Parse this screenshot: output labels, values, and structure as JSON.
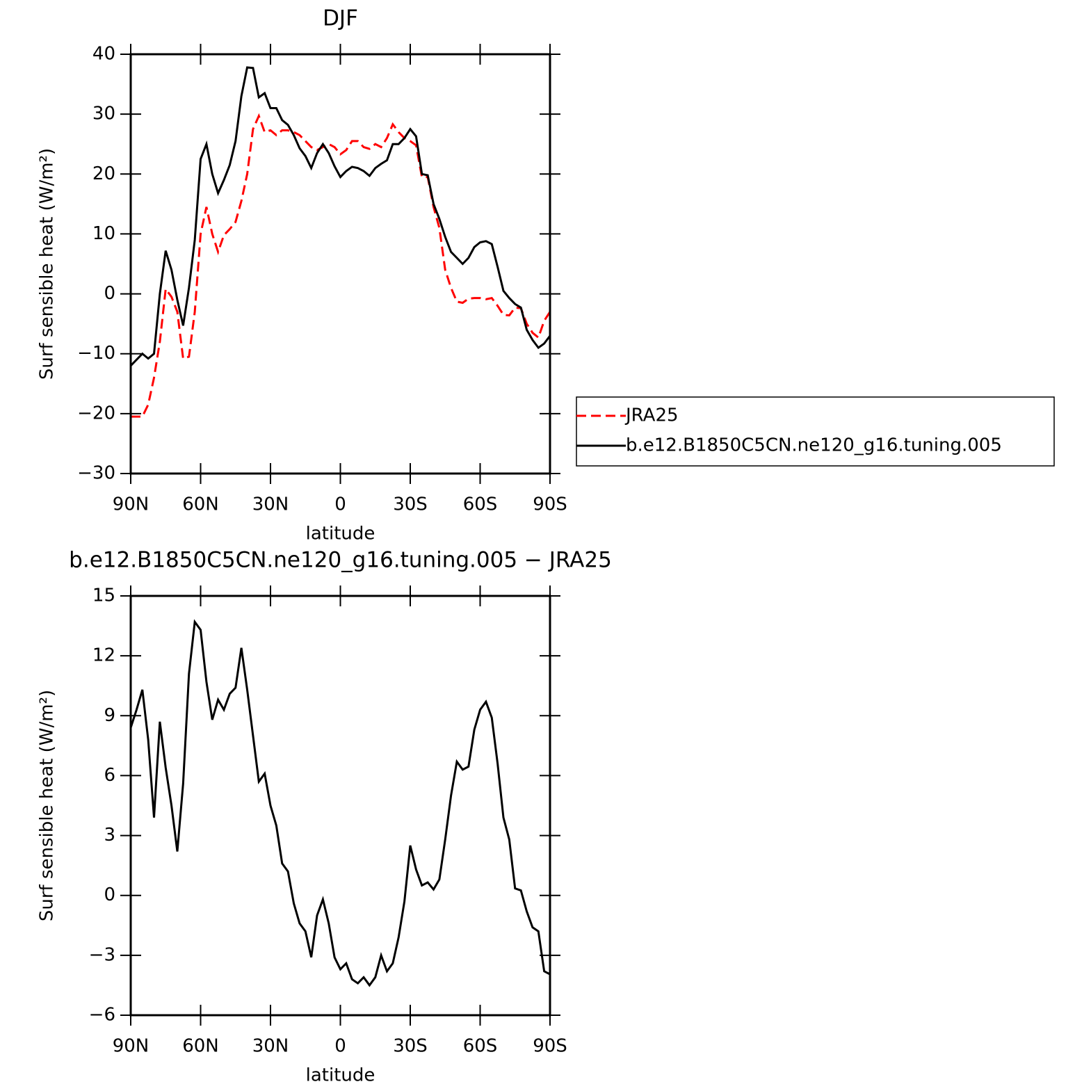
{
  "chart_data": [
    {
      "type": "line",
      "title": "DJF",
      "xlabel": "latitude",
      "ylabel": "Surf sensible heat (W/m²)",
      "x": [
        90,
        87.5,
        85,
        82.5,
        80,
        77.5,
        75,
        72.5,
        70,
        67.5,
        65,
        62.5,
        60,
        57.5,
        55,
        52.5,
        50,
        47.5,
        45,
        42.5,
        40,
        37.5,
        35,
        32.5,
        30,
        27.5,
        25,
        22.5,
        20,
        17.5,
        15,
        12.5,
        10,
        7.5,
        5,
        2.5,
        0,
        -2.5,
        -5,
        -7.5,
        -10,
        -12.5,
        -15,
        -17.5,
        -20,
        -22.5,
        -25,
        -27.5,
        -30,
        -32.5,
        -35,
        -37.5,
        -40,
        -42.5,
        -45,
        -47.5,
        -50,
        -52.5,
        -55,
        -57.5,
        -60,
        -62.5,
        -65,
        -67.5,
        -70,
        -72.5,
        -75,
        -77.5,
        -80,
        -82.5,
        -85,
        -87.5,
        -90
      ],
      "xlim": [
        90,
        -90
      ],
      "xticks": [
        {
          "value": 90,
          "label": "90N"
        },
        {
          "value": 60,
          "label": "60N"
        },
        {
          "value": 30,
          "label": "30N"
        },
        0,
        {
          "value": -30,
          "label": "30S"
        },
        {
          "value": -60,
          "label": "60S"
        },
        {
          "value": -90,
          "label": "90S"
        }
      ],
      "ylim": [
        -30,
        40
      ],
      "yticks": [
        {
          "value": -30,
          "label": "−30"
        },
        {
          "value": -20,
          "label": "−20"
        },
        {
          "value": -10,
          "label": "−10"
        },
        0,
        10,
        20,
        30,
        40
      ],
      "legend": "outside-right",
      "series": [
        {
          "name": "JRA25",
          "color": "#ff0000",
          "dash": true,
          "values": [
            -20.5,
            -20.5,
            -20.5,
            -18.5,
            -14,
            -8,
            0.8,
            -0.5,
            -3,
            -10.8,
            -10.5,
            -3,
            10,
            14.5,
            10,
            7,
            9.8,
            10.8,
            12,
            15.5,
            20,
            27.5,
            29.7,
            27,
            27.3,
            26.5,
            27.3,
            27.3,
            27,
            26.5,
            25.5,
            24.5,
            24,
            24.5,
            25,
            24.5,
            23.3,
            24,
            25.5,
            25.5,
            24.5,
            24.2,
            25,
            24.5,
            26,
            28.3,
            27,
            26,
            25.5,
            24.8,
            19.5,
            19.5,
            14.5,
            11,
            4,
            1,
            -1.3,
            -1.5,
            -0.8,
            -0.7,
            -0.7,
            -0.9,
            -0.7,
            -2,
            -3.5,
            -3.6,
            -2.3,
            -2.4,
            -5,
            -6.5,
            -7.3,
            -4.5,
            -3
          ]
        },
        {
          "name": "b.e12.B1850C5CN.ne120_g16.tuning.005",
          "color": "#000000",
          "dash": false,
          "values": [
            -12,
            -11,
            -10,
            -10.8,
            -10,
            0,
            7.2,
            4,
            -1,
            -5.3,
            1,
            9,
            22.5,
            25,
            20,
            16.8,
            19,
            21.5,
            25.5,
            33,
            37.8,
            37.7,
            32.8,
            33.5,
            31,
            31,
            29,
            28.2,
            26.5,
            24.3,
            23,
            21,
            23.5,
            25,
            23.5,
            21.3,
            19.5,
            20.5,
            21.2,
            21,
            20.5,
            19.7,
            21,
            21.7,
            22.3,
            25,
            25,
            26,
            27.5,
            26.3,
            20,
            19.8,
            15,
            12.5,
            9.5,
            7,
            6,
            5,
            6,
            7.8,
            8.6,
            8.8,
            8.3,
            4.5,
            0.5,
            -0.7,
            -1.7,
            -2.3,
            -6,
            -7.7,
            -9,
            -8.3,
            -7
          ]
        }
      ]
    },
    {
      "type": "line",
      "title": "b.e12.B1850C5CN.ne120_g16.tuning.005 − JRA25",
      "xlabel": "latitude",
      "ylabel": "Surf sensible heat (W/m²)",
      "x": [
        90,
        87.5,
        85,
        82.5,
        80,
        77.5,
        75,
        72.5,
        70,
        67.5,
        65,
        62.5,
        60,
        57.5,
        55,
        52.5,
        50,
        47.5,
        45,
        42.5,
        40,
        37.5,
        35,
        32.5,
        30,
        27.5,
        25,
        22.5,
        20,
        17.5,
        15,
        12.5,
        10,
        7.5,
        5,
        2.5,
        0,
        -2.5,
        -5,
        -7.5,
        -10,
        -12.5,
        -15,
        -17.5,
        -20,
        -22.5,
        -25,
        -27.5,
        -30,
        -32.5,
        -35,
        -37.5,
        -40,
        -42.5,
        -45,
        -47.5,
        -50,
        -52.5,
        -55,
        -57.5,
        -60,
        -62.5,
        -65,
        -67.5,
        -70,
        -72.5,
        -75,
        -77.5,
        -80,
        -82.5,
        -85,
        -87.5,
        -90
      ],
      "xlim": [
        90,
        -90
      ],
      "xticks": [
        {
          "value": 90,
          "label": "90N"
        },
        {
          "value": 60,
          "label": "60N"
        },
        {
          "value": 30,
          "label": "30N"
        },
        0,
        {
          "value": -30,
          "label": "30S"
        },
        {
          "value": -60,
          "label": "60S"
        },
        {
          "value": -90,
          "label": "90S"
        }
      ],
      "ylim": [
        -6,
        15
      ],
      "yticks": [
        {
          "value": -6,
          "label": "−6"
        },
        {
          "value": -3,
          "label": "−3"
        },
        0,
        3,
        6,
        9,
        12,
        15
      ],
      "series": [
        {
          "color": "#000000",
          "dash": false,
          "values": [
            8.4,
            9.3,
            10.3,
            7.8,
            3.9,
            8.7,
            6.4,
            4.5,
            2.2,
            5.6,
            11.1,
            13.7,
            13.3,
            10.7,
            8.8,
            9.8,
            9.3,
            10.1,
            10.4,
            12.4,
            10.3,
            8,
            5.7,
            6.1,
            4.5,
            3.5,
            1.6,
            1.2,
            -0.4,
            -1.4,
            -1.8,
            -3.1,
            -1,
            -0.2,
            -1.4,
            -3.1,
            -3.7,
            -3.4,
            -4.2,
            -4.4,
            -4.1,
            -4.5,
            -4.1,
            -3,
            -3.8,
            -3.4,
            -2.1,
            -0.3,
            2.5,
            1.3,
            0.5,
            0.65,
            0.3,
            0.8,
            2.8,
            5,
            6.7,
            6.3,
            6.45,
            8.3,
            9.3,
            9.7,
            8.9,
            6.6,
            3.9,
            2.8,
            0.35,
            0.25,
            -0.8,
            -1.6,
            -1.8,
            -3.8,
            -3.95
          ]
        }
      ]
    }
  ]
}
